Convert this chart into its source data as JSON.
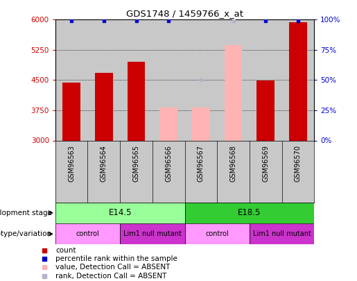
{
  "title": "GDS1748 / 1459766_x_at",
  "samples": [
    "GSM96563",
    "GSM96564",
    "GSM96565",
    "GSM96566",
    "GSM96567",
    "GSM96568",
    "GSM96569",
    "GSM96570"
  ],
  "counts": [
    4430,
    4680,
    4960,
    3820,
    3820,
    5370,
    4490,
    5940
  ],
  "count_absent": [
    false,
    false,
    false,
    true,
    true,
    true,
    false,
    false
  ],
  "percentile_ranks": [
    99,
    99,
    99,
    99,
    50,
    99,
    99,
    99
  ],
  "rank_absent": [
    false,
    false,
    false,
    false,
    true,
    true,
    false,
    false
  ],
  "ylim_left": [
    3000,
    6000
  ],
  "ylim_right": [
    0,
    100
  ],
  "yticks_left": [
    3000,
    3750,
    4500,
    5250,
    6000
  ],
  "yticks_right": [
    0,
    25,
    50,
    75,
    100
  ],
  "bar_color_present": "#cc0000",
  "bar_color_absent": "#ffb3b3",
  "rank_color_present": "#0000cc",
  "rank_color_absent": "#b3b3cc",
  "background_plot": "#c8c8c8",
  "background_labels": "#c8c8c8",
  "development_stage_colors": [
    "#99ff99",
    "#33cc33"
  ],
  "genotype_colors": [
    "#ff99ff",
    "#cc33cc"
  ],
  "development_stages": [
    {
      "label": "E14.5",
      "start": 0,
      "end": 4
    },
    {
      "label": "E18.5",
      "start": 4,
      "end": 8
    }
  ],
  "genotypes": [
    {
      "label": "control",
      "start": 0,
      "end": 2
    },
    {
      "label": "Lim1 null mutant",
      "start": 2,
      "end": 4
    },
    {
      "label": "control",
      "start": 4,
      "end": 6
    },
    {
      "label": "Lim1 null mutant",
      "start": 6,
      "end": 8
    }
  ],
  "legend_items": [
    {
      "label": "count",
      "color": "#cc0000"
    },
    {
      "label": "percentile rank within the sample",
      "color": "#0000cc"
    },
    {
      "label": "value, Detection Call = ABSENT",
      "color": "#ffb3b3"
    },
    {
      "label": "rank, Detection Call = ABSENT",
      "color": "#b3b3cc"
    }
  ]
}
